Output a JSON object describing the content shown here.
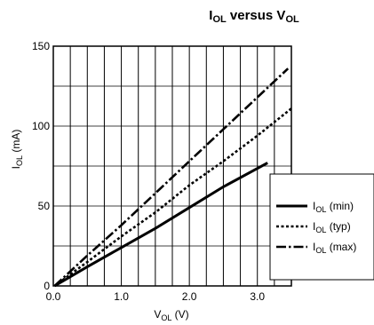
{
  "chart_data": {
    "type": "line",
    "title": {
      "main": "I",
      "sub": "OL",
      "mid": " versus V",
      "sub2": "OL"
    },
    "xlabel": {
      "main": "V",
      "sub": "OL",
      "unit": " (V)"
    },
    "ylabel": {
      "main": "I",
      "sub": "OL",
      "unit": " (mA)"
    },
    "xlim": [
      0,
      3.5
    ],
    "ylim": [
      0,
      150
    ],
    "x_ticks": [
      {
        "value": 0.0,
        "label": "0.0"
      },
      {
        "value": 1.0,
        "label": "1.0"
      },
      {
        "value": 2.0,
        "label": "2.0"
      },
      {
        "value": 3.0,
        "label": "3.0"
      }
    ],
    "y_ticks": [
      {
        "value": 0,
        "label": "0"
      },
      {
        "value": 50,
        "label": "50"
      },
      {
        "value": 100,
        "label": "100"
      },
      {
        "value": 150,
        "label": "150"
      }
    ],
    "grid": true,
    "grid_x_step": 0.25,
    "grid_y_step": 25,
    "legend_position": "right",
    "series": [
      {
        "name": "I",
        "name_sub": "OL",
        "name_suffix": " (min)",
        "style": "solid",
        "points": [
          [
            0.02,
            0
          ],
          [
            0.5,
            12
          ],
          [
            1.0,
            24
          ],
          [
            1.5,
            36
          ],
          [
            2.0,
            49
          ],
          [
            2.5,
            62
          ],
          [
            3.15,
            77
          ]
        ]
      },
      {
        "name": "I",
        "name_sub": "OL",
        "name_suffix": " (typ)",
        "style": "dotted",
        "points": [
          [
            0.02,
            0
          ],
          [
            0.5,
            15
          ],
          [
            1.0,
            31
          ],
          [
            1.5,
            46
          ],
          [
            2.0,
            63
          ],
          [
            2.5,
            78
          ],
          [
            3.0,
            94
          ],
          [
            3.5,
            111
          ]
        ]
      },
      {
        "name": "I",
        "name_sub": "OL",
        "name_suffix": " (max)",
        "style": "dashdot",
        "points": [
          [
            0.02,
            0
          ],
          [
            0.5,
            19
          ],
          [
            1.0,
            38
          ],
          [
            1.5,
            58
          ],
          [
            2.0,
            78
          ],
          [
            2.5,
            98
          ],
          [
            3.0,
            118
          ],
          [
            3.45,
            136
          ]
        ]
      }
    ]
  }
}
